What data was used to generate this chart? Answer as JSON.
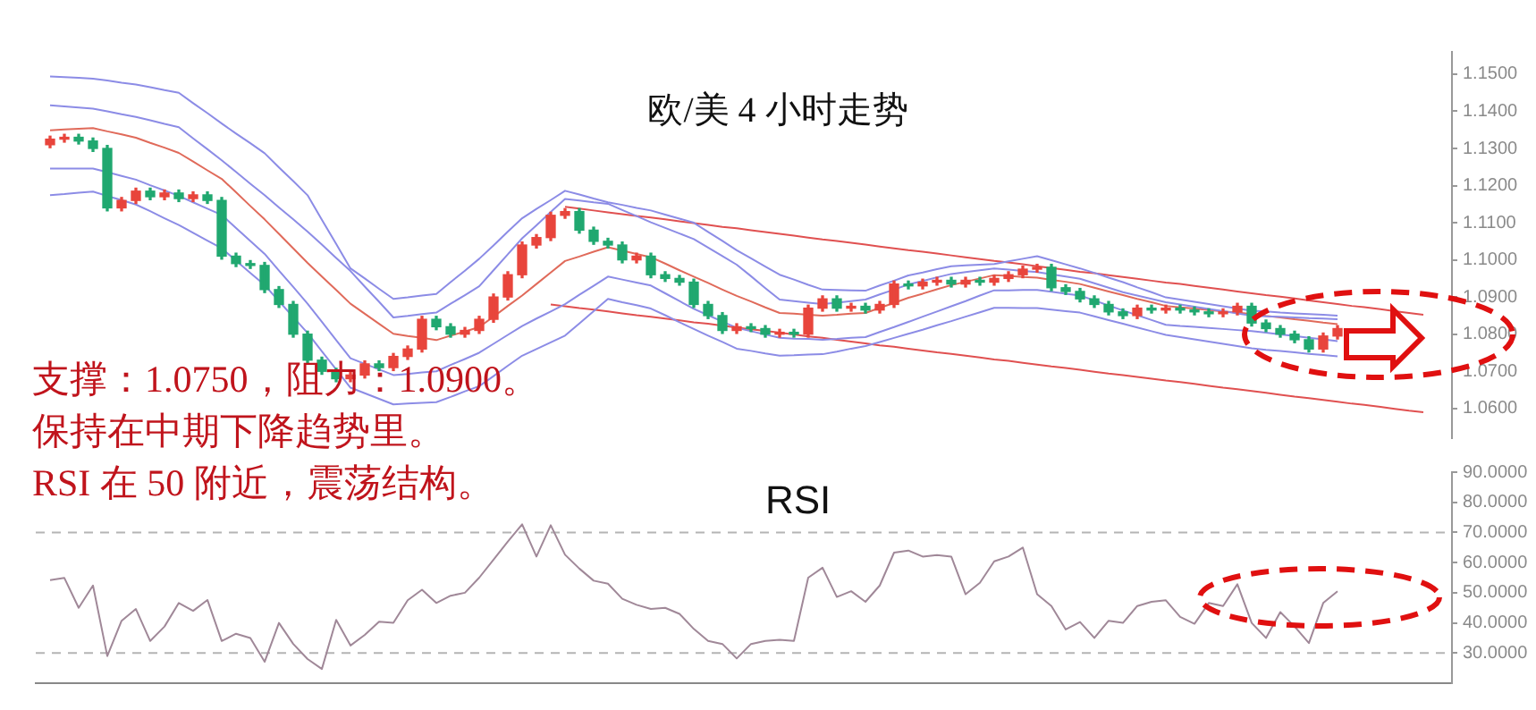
{
  "chart_data": [
    {
      "type": "candlestick",
      "title": "欧/美 4 小时走势",
      "annotations": [
        "支撑：1.0750，阻力：1.0900。",
        "保持在中期下降趋势里。",
        "RSI 在 50 附近，震荡结构。"
      ],
      "categories": [
        null,
        null,
        null,
        null,
        null,
        null,
        null,
        null,
        null,
        null,
        null,
        null,
        null,
        null,
        null,
        null,
        null,
        null,
        null,
        null,
        null,
        null,
        null,
        null,
        null,
        null,
        null,
        null,
        null,
        null,
        null,
        null,
        null,
        null,
        null,
        null,
        null,
        null,
        null,
        null,
        null,
        null,
        null,
        null,
        null,
        null,
        null,
        null,
        null,
        null,
        null,
        null,
        null,
        null,
        null,
        null,
        null,
        null,
        null,
        null,
        null,
        null,
        null,
        null,
        null,
        null,
        null,
        null,
        null,
        null,
        null,
        null,
        null,
        null,
        null,
        null,
        null,
        null,
        null,
        null,
        null,
        null,
        null,
        null,
        null,
        null,
        null,
        null,
        null,
        null,
        null,
        null,
        null,
        null,
        null,
        null,
        null
      ],
      "ohlc": [
        [
          1.131,
          1.1333,
          1.1302,
          1.1325
        ],
        [
          1.1325,
          1.1338,
          1.1317,
          1.133
        ],
        [
          1.133,
          1.1338,
          1.1312,
          1.132
        ],
        [
          1.132,
          1.1328,
          1.1292,
          1.13
        ],
        [
          1.13,
          1.1308,
          1.1132,
          1.114
        ],
        [
          1.114,
          1.1168,
          1.1132,
          1.116
        ],
        [
          1.116,
          1.1193,
          1.1152,
          1.1185
        ],
        [
          1.1185,
          1.1193,
          1.1162,
          1.117
        ],
        [
          1.117,
          1.1188,
          1.1162,
          1.118
        ],
        [
          1.118,
          1.1188,
          1.1157,
          1.1165
        ],
        [
          1.1165,
          1.1183,
          1.1157,
          1.1175
        ],
        [
          1.1175,
          1.1183,
          1.1152,
          1.116
        ],
        [
          1.116,
          1.1168,
          1.1002,
          1.101
        ],
        [
          1.101,
          1.1018,
          1.0982,
          1.099
        ],
        [
          1.099,
          1.0998,
          1.0977,
          1.0985
        ],
        [
          1.0985,
          1.0993,
          1.0912,
          1.092
        ],
        [
          1.092,
          1.0928,
          1.0872,
          1.088
        ],
        [
          1.088,
          1.0888,
          1.0792,
          1.08
        ],
        [
          1.08,
          1.0808,
          1.0722,
          1.073
        ],
        [
          1.073,
          1.0738,
          1.0692,
          1.07
        ],
        [
          1.07,
          1.0708,
          1.0672,
          1.068
        ],
        [
          1.068,
          1.0698,
          1.0672,
          1.069
        ],
        [
          1.069,
          1.0728,
          1.0682,
          1.072
        ],
        [
          1.072,
          1.0728,
          1.0702,
          1.071
        ],
        [
          1.071,
          1.0748,
          1.0702,
          1.074
        ],
        [
          1.074,
          1.0768,
          1.0732,
          1.076
        ],
        [
          1.076,
          1.0848,
          1.0752,
          1.084
        ],
        [
          1.084,
          1.0848,
          1.0812,
          1.082
        ],
        [
          1.082,
          1.0828,
          1.0792,
          1.08
        ],
        [
          1.08,
          1.0818,
          1.0792,
          1.081
        ],
        [
          1.081,
          1.0848,
          1.0802,
          1.084
        ],
        [
          1.084,
          1.0908,
          1.0832,
          1.09
        ],
        [
          1.09,
          1.0968,
          1.0892,
          1.096
        ],
        [
          1.096,
          1.1048,
          1.0952,
          1.104
        ],
        [
          1.104,
          1.1068,
          1.1032,
          1.106
        ],
        [
          1.106,
          1.1128,
          1.1052,
          1.112
        ],
        [
          1.112,
          1.1138,
          1.1112,
          1.113
        ],
        [
          1.113,
          1.1138,
          1.1072,
          1.108
        ],
        [
          1.108,
          1.1088,
          1.1042,
          1.105
        ],
        [
          1.105,
          1.1058,
          1.1032,
          1.104
        ],
        [
          1.104,
          1.1048,
          1.0992,
          1.1
        ],
        [
          1.1,
          1.1018,
          1.0992,
          1.101
        ],
        [
          1.101,
          1.1018,
          1.0952,
          1.096
        ],
        [
          1.096,
          1.0968,
          1.0942,
          1.095
        ],
        [
          1.095,
          1.0958,
          1.0932,
          1.094
        ],
        [
          1.094,
          1.0948,
          1.0872,
          1.088
        ],
        [
          1.088,
          1.0888,
          1.0842,
          1.085
        ],
        [
          1.085,
          1.0858,
          1.0802,
          1.081
        ],
        [
          1.081,
          1.0828,
          1.0802,
          1.082
        ],
        [
          1.082,
          1.0828,
          1.0807,
          1.0815
        ],
        [
          1.0815,
          1.0823,
          1.0792,
          1.08
        ],
        [
          1.08,
          1.0813,
          1.0792,
          1.0805
        ],
        [
          1.0805,
          1.0813,
          1.0792,
          1.08
        ],
        [
          1.08,
          1.0878,
          1.0792,
          1.087
        ],
        [
          1.087,
          1.0903,
          1.0862,
          1.0895
        ],
        [
          1.0895,
          1.0903,
          1.0862,
          1.087
        ],
        [
          1.087,
          1.0883,
          1.0862,
          1.0875
        ],
        [
          1.0875,
          1.0883,
          1.0857,
          1.0865
        ],
        [
          1.0865,
          1.0888,
          1.0857,
          1.088
        ],
        [
          1.088,
          1.0943,
          1.0872,
          1.0935
        ],
        [
          1.0935,
          1.0943,
          1.0922,
          1.093
        ],
        [
          1.093,
          1.0948,
          1.0922,
          1.094
        ],
        [
          1.094,
          1.0953,
          1.0932,
          1.0945
        ],
        [
          1.0945,
          1.0953,
          1.0927,
          1.0935
        ],
        [
          1.0935,
          1.0953,
          1.0927,
          1.0945
        ],
        [
          1.0945,
          1.0953,
          1.0932,
          1.094
        ],
        [
          1.094,
          1.0958,
          1.0932,
          1.095
        ],
        [
          1.095,
          1.0968,
          1.0942,
          1.096
        ],
        [
          1.096,
          1.0983,
          1.0952,
          1.0975
        ],
        [
          1.0975,
          1.0988,
          1.0967,
          1.098
        ],
        [
          1.098,
          1.0988,
          1.0917,
          1.0925
        ],
        [
          1.0925,
          1.0933,
          1.0907,
          1.0915
        ],
        [
          1.0915,
          1.0923,
          1.0887,
          1.0895
        ],
        [
          1.0895,
          1.0903,
          1.0872,
          1.088
        ],
        [
          1.088,
          1.0888,
          1.0852,
          1.086
        ],
        [
          1.086,
          1.0868,
          1.0842,
          1.085
        ],
        [
          1.085,
          1.0878,
          1.0842,
          1.087
        ],
        [
          1.087,
          1.0878,
          1.0857,
          1.0865
        ],
        [
          1.0865,
          1.0878,
          1.0857,
          1.087
        ],
        [
          1.087,
          1.0878,
          1.0857,
          1.0865
        ],
        [
          1.0865,
          1.0873,
          1.0852,
          1.086
        ],
        [
          1.086,
          1.0868,
          1.0847,
          1.0855
        ],
        [
          1.0855,
          1.0868,
          1.0847,
          1.086
        ],
        [
          1.086,
          1.0883,
          1.0852,
          1.0875
        ],
        [
          1.0875,
          1.0883,
          1.0822,
          1.083
        ],
        [
          1.083,
          1.0838,
          1.0807,
          1.0815
        ],
        [
          1.0815,
          1.0823,
          1.0792,
          1.08
        ],
        [
          1.08,
          1.0808,
          1.0777,
          1.0785
        ],
        [
          1.0785,
          1.0793,
          1.0752,
          1.076
        ],
        [
          1.076,
          1.0803,
          1.0752,
          1.0795
        ],
        [
          1.0795,
          1.0823,
          1.0787,
          1.0815
        ],
        null,
        null,
        null,
        null,
        null,
        null
      ],
      "colors": [
        "#e8453c",
        "#e8453c",
        "#20a870",
        "#20a870",
        "#20a870",
        "#e8453c",
        "#e8453c",
        "#20a870",
        "#e8453c",
        "#20a870",
        "#e8453c",
        "#20a870",
        "#20a870",
        "#20a870",
        "#20a870",
        "#20a870",
        "#20a870",
        "#20a870",
        "#20a870",
        "#20a870",
        "#20a870",
        "#e8453c",
        "#e8453c",
        "#20a870",
        "#e8453c",
        "#e8453c",
        "#e8453c",
        "#20a870",
        "#20a870",
        "#e8453c",
        "#e8453c",
        "#e8453c",
        "#e8453c",
        "#e8453c",
        "#e8453c",
        "#e8453c",
        "#e8453c",
        "#20a870",
        "#20a870",
        "#20a870",
        "#20a870",
        "#e8453c",
        "#20a870",
        "#20a870",
        "#20a870",
        "#20a870",
        "#20a870",
        "#20a870",
        "#e8453c",
        "#20a870",
        "#20a870",
        "#e8453c",
        "#20a870",
        "#e8453c",
        "#e8453c",
        "#20a870",
        "#e8453c",
        "#20a870",
        "#e8453c",
        "#e8453c",
        "#20a870",
        "#e8453c",
        "#e8453c",
        "#20a870",
        "#e8453c",
        "#20a870",
        "#e8453c",
        "#e8453c",
        "#e8453c",
        "#e8453c",
        "#20a870",
        "#20a870",
        "#20a870",
        "#20a870",
        "#20a870",
        "#20a870",
        "#e8453c",
        "#20a870",
        "#e8453c",
        "#20a870",
        "#20a870",
        "#20a870",
        "#e8453c",
        "#e8453c",
        "#20a870",
        "#20a870",
        "#20a870",
        "#20a870",
        "#20a870",
        "#e8453c",
        "#e8453c",
        null,
        null,
        null,
        null,
        null,
        null
      ],
      "series": [
        {
          "type": "line",
          "color": "#8c8ce6",
          "values": [
            1.1494,
            1.1492,
            1.149,
            1.1488,
            1.1483,
            1.1477,
            1.1472,
            1.1465,
            1.1457,
            1.145,
            1.1422,
            1.1395,
            1.1367,
            1.134,
            1.1314,
            1.1287,
            1.1249,
            1.1212,
            1.1174,
            1.1108,
            1.1043,
            1.0977,
            1.095,
            1.0922,
            1.0895,
            1.0899,
            1.0904,
            1.0908,
            1.094,
            1.0971,
            1.1003,
            1.1039,
            1.1076,
            1.1112,
            1.1137,
            1.1161,
            1.1186,
            1.1176,
            1.1165,
            1.1155,
            1.1148,
            1.114,
            1.1133,
            1.1122,
            1.1111,
            1.11,
            1.1075,
            1.1051,
            1.1026,
            1.1004,
            1.0982,
            1.096,
            1.0947,
            1.0933,
            1.092,
            1.0919,
            1.0918,
            1.0917,
            1.0931,
            1.0944,
            1.0958,
            1.0966,
            1.0975,
            1.0983,
            1.0985,
            1.0987,
            1.0989,
            1.0996,
            1.1003,
            1.101,
            1.0999,
            1.0988,
            1.0977,
            1.0965,
            1.0952,
            1.094,
            1.0926,
            1.0913,
            1.0899,
            1.0893,
            1.0887,
            1.0881,
            1.0875,
            1.0869,
            1.0863,
            1.0861,
            1.0858,
            1.0856,
            1.0854,
            1.0852,
            1.085,
            null,
            null,
            null,
            null,
            null,
            null
          ]
        },
        {
          "type": "line",
          "color": "#8c8ce6",
          "values": [
            1.1416,
            1.1413,
            1.141,
            1.1407,
            1.14,
            1.1392,
            1.1385,
            1.1376,
            1.1366,
            1.1357,
            1.1327,
            1.1298,
            1.1268,
            1.1237,
            1.1205,
            1.1174,
            1.1141,
            1.1109,
            1.1076,
            1.1041,
            1.1005,
            1.097,
            1.0928,
            1.0887,
            1.0845,
            1.0849,
            1.0854,
            1.0858,
            1.0882,
            1.0905,
            1.0929,
            1.0972,
            1.1015,
            1.1058,
            1.1093,
            1.1129,
            1.1164,
            1.116,
            1.1155,
            1.1151,
            1.1134,
            1.1118,
            1.1101,
            1.1086,
            1.1071,
            1.1056,
            1.1033,
            1.101,
            1.0987,
            1.0956,
            1.0924,
            1.0893,
            1.0889,
            1.0885,
            1.0881,
            1.0885,
            1.0889,
            1.0893,
            1.0907,
            1.092,
            1.0934,
            1.0943,
            1.0953,
            1.0962,
            1.0967,
            1.0972,
            1.0977,
            1.0974,
            1.097,
            1.0967,
            1.0961,
            1.0955,
            1.0949,
            1.0937,
            1.0925,
            1.0913,
            1.0904,
            1.0895,
            1.0886,
            1.088,
            1.0874,
            1.0868,
            1.0862,
            1.0856,
            1.085,
            1.0848,
            1.0847,
            1.0845,
            1.0843,
            1.0842,
            1.084,
            null,
            null,
            null,
            null,
            null,
            null
          ]
        },
        {
          "type": "line",
          "color": "#e06a5a",
          "values": [
            1.1349,
            1.1351,
            1.1353,
            1.1355,
            1.1346,
            1.1338,
            1.1329,
            1.1315,
            1.1302,
            1.1288,
            1.1265,
            1.1241,
            1.1218,
            1.1182,
            1.1145,
            1.1109,
            1.107,
            1.1031,
            1.0992,
            1.0955,
            1.0919,
            1.0882,
            1.0855,
            1.0828,
            1.0801,
            1.0795,
            1.079,
            1.0784,
            1.0796,
            1.0807,
            1.0819,
            1.0847,
            1.0876,
            1.0904,
            1.0935,
            1.0966,
            1.0997,
            1.1009,
            1.1022,
            1.1034,
            1.1025,
            1.1016,
            1.1007,
            1.099,
            1.0972,
            1.0955,
            1.0938,
            1.092,
            1.0903,
            1.0888,
            1.0872,
            1.0857,
            1.0855,
            1.0852,
            1.085,
            1.0852,
            1.0855,
            1.0857,
            1.0871,
            1.0884,
            1.0898,
            1.0909,
            1.0921,
            1.0932,
            1.0941,
            1.095,
            1.0959,
            1.0957,
            1.0954,
            1.0952,
            1.0946,
            1.0941,
            1.0935,
            1.0925,
            1.0915,
            1.0905,
            1.0895,
            1.0886,
            1.0876,
            1.0872,
            1.0869,
            1.0865,
            1.0861,
            1.0858,
            1.0854,
            1.0849,
            1.0845,
            1.084,
            1.0836,
            1.0831,
            1.0827,
            null,
            null,
            null,
            null,
            null,
            null
          ]
        },
        {
          "type": "line",
          "color": "#8c8ce6",
          "values": [
            1.1246,
            1.1246,
            1.1246,
            1.1246,
            1.1236,
            1.1226,
            1.1216,
            1.1201,
            1.1187,
            1.1172,
            1.1155,
            1.1138,
            1.1121,
            1.1086,
            1.1051,
            1.1016,
            1.0971,
            1.0927,
            1.0882,
            1.0833,
            1.0784,
            1.0735,
            1.072,
            1.0705,
            1.069,
            1.0693,
            1.0697,
            1.07,
            1.0717,
            1.0733,
            1.075,
            1.0774,
            1.0798,
            1.0822,
            1.0842,
            1.0861,
            1.0881,
            1.0906,
            1.093,
            1.0955,
            1.0947,
            1.0939,
            1.0931,
            1.091,
            1.0889,
            1.0868,
            1.0851,
            1.0834,
            1.0817,
            1.0808,
            1.0799,
            1.079,
            1.0788,
            1.0787,
            1.0785,
            1.0787,
            1.079,
            1.0792,
            1.0806,
            1.0819,
            1.0833,
            1.0847,
            1.0861,
            1.0875,
            1.0889,
            1.0904,
            1.0918,
            1.0918,
            1.0919,
            1.0919,
            1.0914,
            1.0909,
            1.0904,
            1.0891,
            1.0877,
            1.0864,
            1.0851,
            1.0838,
            1.0825,
            1.0822,
            1.082,
            1.0817,
            1.0814,
            1.0811,
            1.0808,
            1.0804,
            1.0799,
            1.0795,
            1.079,
            1.0786,
            1.0781,
            null,
            null,
            null,
            null,
            null,
            null
          ]
        },
        {
          "type": "line",
          "color": "#8c8ce6",
          "values": [
            1.1174,
            1.1177,
            1.1181,
            1.1184,
            1.1172,
            1.1161,
            1.1149,
            1.1131,
            1.1112,
            1.1094,
            1.1073,
            1.1052,
            1.1031,
            1.0998,
            1.0965,
            1.0932,
            1.0889,
            1.0846,
            1.0803,
            1.0754,
            1.0705,
            1.0656,
            1.0641,
            1.0626,
            1.0611,
            1.0613,
            1.0615,
            1.0617,
            1.0631,
            1.0646,
            1.066,
            1.0687,
            1.0715,
            1.0742,
            1.076,
            1.0778,
            1.0796,
            1.0829,
            1.0862,
            1.0895,
            1.0886,
            1.0878,
            1.0869,
            1.0851,
            1.0832,
            1.0814,
            1.0796,
            1.0779,
            1.0761,
            1.0755,
            1.0748,
            1.0742,
            1.0743,
            1.0745,
            1.0746,
            1.0753,
            1.0761,
            1.0768,
            1.0779,
            1.079,
            1.0801,
            1.0812,
            1.0824,
            1.0835,
            1.0847,
            1.0859,
            1.0871,
            1.0871,
            1.087,
            1.087,
            1.0866,
            1.0862,
            1.0858,
            1.0848,
            1.0838,
            1.0828,
            1.0818,
            1.0808,
            1.0798,
            1.0792,
            1.0786,
            1.078,
            1.0774,
            1.0768,
            1.0762,
            1.0758,
            1.0755,
            1.0751,
            1.0747,
            1.0744,
            1.074,
            null,
            null,
            null,
            null,
            null,
            null
          ]
        },
        {
          "type": "line",
          "color": "#e05050",
          "values": [
            null,
            null,
            null,
            null,
            null,
            null,
            null,
            null,
            null,
            null,
            null,
            null,
            null,
            null,
            null,
            null,
            null,
            null,
            null,
            null,
            null,
            null,
            null,
            null,
            null,
            null,
            null,
            null,
            null,
            null,
            null,
            null,
            null,
            null,
            null,
            null,
            1.1143,
            1.1138,
            1.1133,
            1.1128,
            1.1123,
            1.1118,
            1.1114,
            1.1109,
            1.1104,
            1.1099,
            1.1094,
            1.1089,
            1.1085,
            1.108,
            1.1075,
            1.107,
            1.1065,
            1.106,
            1.1055,
            1.1051,
            1.1046,
            1.1041,
            1.1036,
            1.1031,
            1.1026,
            1.1022,
            1.1017,
            1.1012,
            1.1007,
            1.1002,
            1.0997,
            1.0993,
            1.0988,
            1.0983,
            1.0978,
            1.0973,
            1.0968,
            1.0964,
            1.0959,
            1.0954,
            1.0949,
            1.0944,
            1.0939,
            1.0935,
            1.093,
            1.0925,
            1.092,
            1.0915,
            1.091,
            1.0905,
            1.0901,
            1.0896,
            1.0891,
            1.0886,
            1.0881,
            1.0876,
            1.0872,
            1.0867,
            1.0862,
            1.0857,
            1.0852
          ]
        },
        {
          "type": "line",
          "color": "#e05050",
          "values": [
            null,
            null,
            null,
            null,
            null,
            null,
            null,
            null,
            null,
            null,
            null,
            null,
            null,
            null,
            null,
            null,
            null,
            null,
            null,
            null,
            null,
            null,
            null,
            null,
            null,
            null,
            null,
            null,
            null,
            null,
            null,
            null,
            null,
            null,
            null,
            1.088,
            1.0875,
            1.087,
            1.0866,
            1.0861,
            1.0856,
            1.0851,
            1.0847,
            1.0842,
            1.0837,
            1.0832,
            1.0828,
            1.0823,
            1.0818,
            1.0813,
            1.0809,
            1.0804,
            1.0799,
            1.0794,
            1.079,
            1.0785,
            1.078,
            1.0775,
            1.077,
            1.0766,
            1.0761,
            1.0756,
            1.0751,
            1.0747,
            1.0742,
            1.0737,
            1.0732,
            1.0728,
            1.0723,
            1.0718,
            1.0713,
            1.0709,
            1.0704,
            1.0699,
            1.0694,
            1.069,
            1.0685,
            1.068,
            1.0675,
            1.0671,
            1.0666,
            1.0661,
            1.0656,
            1.0652,
            1.0647,
            1.0642,
            1.0637,
            1.0632,
            1.0628,
            1.0623,
            1.0618,
            1.0613,
            1.0609,
            1.0604,
            1.0599,
            1.0594,
            1.059
          ]
        }
      ],
      "ylim": [
        1.052,
        1.156
      ],
      "yticks": [
        {
          "value": 1.06,
          "label": "1.0600"
        },
        {
          "value": 1.07,
          "label": "1.0700"
        },
        {
          "value": 1.08,
          "label": "1.0800"
        },
        {
          "value": 1.09,
          "label": "1.0900"
        },
        {
          "value": 1.1,
          "label": "1.1000"
        },
        {
          "value": 1.11,
          "label": "1.1100"
        },
        {
          "value": 1.12,
          "label": "1.1200"
        },
        {
          "value": 1.13,
          "label": "1.1300"
        },
        {
          "value": 1.14,
          "label": "1.1400"
        },
        {
          "value": 1.15,
          "label": "1.1500"
        }
      ],
      "tick_labels": "y"
    },
    {
      "type": "line",
      "title": "RSI",
      "categories": [
        null,
        null,
        null,
        null,
        null,
        null,
        null,
        null,
        null,
        null,
        null,
        null,
        null,
        null,
        null,
        null,
        null,
        null,
        null,
        null,
        null,
        null,
        null,
        null,
        null,
        null,
        null,
        null,
        null,
        null,
        null,
        null,
        null,
        null,
        null,
        null,
        null,
        null,
        null,
        null,
        null,
        null,
        null,
        null,
        null,
        null,
        null,
        null,
        null,
        null,
        null,
        null,
        null,
        null,
        null,
        null,
        null,
        null,
        null,
        null,
        null,
        null,
        null,
        null,
        null,
        null,
        null,
        null,
        null,
        null,
        null,
        null,
        null,
        null,
        null,
        null,
        null,
        null,
        null,
        null,
        null,
        null,
        null,
        null,
        null,
        null,
        null,
        null,
        null,
        null,
        null,
        null,
        null,
        null,
        null,
        null,
        null
      ],
      "series": [
        {
          "color": "#a08898",
          "values": [
            54.2,
            54.9,
            45,
            52.4,
            29,
            40.7,
            44.6,
            34,
            38.8,
            46.6,
            44,
            47.6,
            34,
            36.4,
            35,
            27.1,
            40,
            33,
            28,
            24.7,
            41,
            32.5,
            36,
            40.4,
            40,
            47.5,
            51,
            46.6,
            49,
            50,
            55,
            61,
            67,
            72.7,
            62,
            72.4,
            62.6,
            58,
            54,
            53,
            48,
            46,
            44.6,
            45,
            43,
            38,
            34,
            33,
            28.2,
            33,
            34,
            34.4,
            34,
            55,
            58.3,
            48.6,
            50.5,
            47,
            52.4,
            63.3,
            64,
            62,
            62.5,
            62,
            49.5,
            53.3,
            60.4,
            62,
            65,
            49.5,
            45.6,
            37.8,
            40.3,
            35,
            40.7,
            40,
            45.6,
            47,
            47.5,
            42,
            39.7,
            46.6,
            45.6,
            52.8,
            40,
            35,
            43.6,
            38.8,
            33.3,
            46.6,
            50.5,
            null,
            null,
            null,
            null,
            null,
            null
          ]
        }
      ],
      "ylim": [
        20,
        90
      ],
      "yticks": [
        {
          "value": 30,
          "label": "30.0000"
        },
        {
          "value": 40,
          "label": "40.0000"
        },
        {
          "value": 50,
          "label": "50.0000"
        },
        {
          "value": 60,
          "label": "60.0000"
        },
        {
          "value": 70,
          "label": "70.0000"
        },
        {
          "value": 80,
          "label": "80.0000"
        },
        {
          "value": 90,
          "label": "90.0000"
        }
      ],
      "ref_lines": [
        {
          "axis": "y",
          "value": 30,
          "color": "#b4b4b4",
          "line_style": "dashed"
        },
        {
          "axis": "y",
          "value": 70,
          "color": "#b4b4b4",
          "line_style": "dashed"
        }
      ],
      "tick_labels": "y"
    }
  ]
}
